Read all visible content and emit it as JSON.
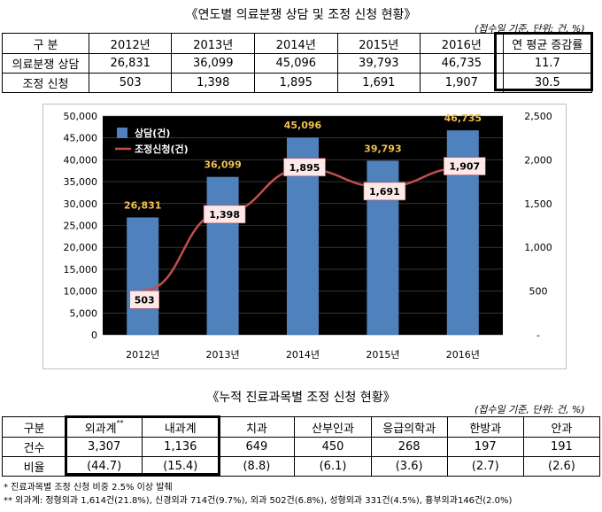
{
  "table1": {
    "title": "《연도별 의료분쟁 상담 및 조정 신청 현황》",
    "unit": "(접수일 기준, 단위: 건, %)",
    "header": [
      "구 분",
      "2012년",
      "2013년",
      "2014년",
      "2015년",
      "2016년",
      "연 평균 증감률"
    ],
    "rows": [
      [
        "의료분쟁 상담",
        "26,831",
        "36,099",
        "45,096",
        "39,793",
        "46,735",
        "11.7"
      ],
      [
        "조정 신청",
        "503",
        "1,398",
        "1,895",
        "1,691",
        "1,907",
        "30.5"
      ]
    ]
  },
  "chart_data": {
    "type": "bar",
    "categories": [
      "2012년",
      "2013년",
      "2014년",
      "2015년",
      "2016년"
    ],
    "series": [
      {
        "name": "상담(건)",
        "type": "bar",
        "axis": "left",
        "values": [
          26831,
          36099,
          45096,
          39793,
          46735
        ],
        "labels": [
          "26,831",
          "36,099",
          "45,096",
          "39,793",
          "46,735"
        ],
        "color": "#4f81bd"
      },
      {
        "name": "조정신청(건)",
        "type": "line",
        "axis": "right",
        "values": [
          503,
          1398,
          1895,
          1691,
          1907
        ],
        "labels": [
          "503",
          "1,398",
          "1,895",
          "1,691",
          "1,907"
        ],
        "color": "#c0504d"
      }
    ],
    "ylim_left": [
      0,
      50000
    ],
    "ylim_right": [
      0,
      2500
    ],
    "left_ticks": [
      "0",
      "5,000",
      "10,000",
      "15,000",
      "20,000",
      "25,000",
      "30,000",
      "35,000",
      "40,000",
      "45,000",
      "50,000"
    ],
    "right_ticks": [
      "-",
      "500",
      "1,000",
      "1,500",
      "2,000",
      "2,500"
    ],
    "plot_background": "#000000",
    "bar_label_color": "#f2c14e",
    "legend_position": "top-left"
  },
  "table2": {
    "title": "《누적 진료과목별 조정 신청 현황》",
    "unit": "(접수일 기준, 단위: 건, %)",
    "header": [
      "구분",
      "외과계",
      "내과계",
      "치과",
      "산부인과",
      "응급의학과",
      "한방과",
      "안과"
    ],
    "header_mark": "**",
    "rows": [
      [
        "건수",
        "3,307",
        "1,136",
        "649",
        "450",
        "268",
        "197",
        "191"
      ],
      [
        "비율",
        "(44.7)",
        "(15.4)",
        "(8.8)",
        "(6.1)",
        "(3.6)",
        "(2.7)",
        "(2.6)"
      ]
    ]
  },
  "notes": [
    "* 진료과목별 조정 신청 비중 2.5% 이상 발췌",
    "** 외과계: 정형외과 1,614건(21.8%), 신경외과 714건(9.7%), 외과 502건(6.8%), 성형외과 331건(4.5%), 흉부외과146건(2.0%)"
  ]
}
